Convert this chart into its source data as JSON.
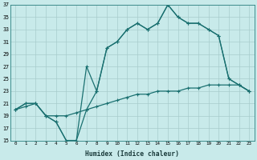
{
  "xlabel": "Humidex (Indice chaleur)",
  "bg_color": "#c8eaea",
  "grid_color": "#a8cccc",
  "line_color": "#1a7070",
  "xmin": -0.5,
  "xmax": 23.5,
  "ymin": 15,
  "ymax": 37,
  "yticks": [
    15,
    17,
    19,
    21,
    23,
    25,
    27,
    29,
    31,
    33,
    35,
    37
  ],
  "xticks": [
    0,
    1,
    2,
    3,
    4,
    5,
    6,
    7,
    8,
    9,
    10,
    11,
    12,
    13,
    14,
    15,
    16,
    17,
    18,
    19,
    20,
    21,
    22,
    23
  ],
  "line_zigzag_x": [
    0,
    1,
    2,
    3,
    4,
    5,
    6,
    7,
    8,
    9,
    10,
    11,
    12,
    13,
    14,
    15,
    16,
    17,
    18,
    19,
    20,
    21,
    22,
    23
  ],
  "line_zigzag_y": [
    20,
    21,
    21,
    19,
    18,
    15,
    15,
    20,
    23,
    30,
    31,
    33,
    34,
    33,
    34,
    37,
    35,
    34,
    34,
    33,
    32,
    25,
    24,
    23
  ],
  "line_spike_x": [
    0,
    1,
    2,
    3,
    4,
    5,
    6,
    7,
    8,
    9,
    10,
    11,
    12,
    13,
    14,
    15,
    16,
    17,
    18,
    19,
    20,
    21,
    22,
    23
  ],
  "line_spike_y": [
    20,
    21,
    21,
    19,
    18,
    15,
    15,
    27,
    23,
    30,
    31,
    33,
    34,
    33,
    34,
    37,
    35,
    34,
    34,
    33,
    32,
    25,
    24,
    23
  ],
  "line_straight_x": [
    0,
    1,
    2,
    3,
    4,
    5,
    6,
    7,
    8,
    9,
    10,
    11,
    12,
    13,
    14,
    15,
    16,
    17,
    18,
    19,
    20,
    21,
    22,
    23
  ],
  "line_straight_y": [
    20,
    20.5,
    21,
    19,
    19,
    19,
    19.5,
    20,
    20.5,
    21,
    21.5,
    22,
    22.5,
    22.5,
    23,
    23,
    23,
    23.5,
    23.5,
    24,
    24,
    24,
    24,
    23
  ]
}
